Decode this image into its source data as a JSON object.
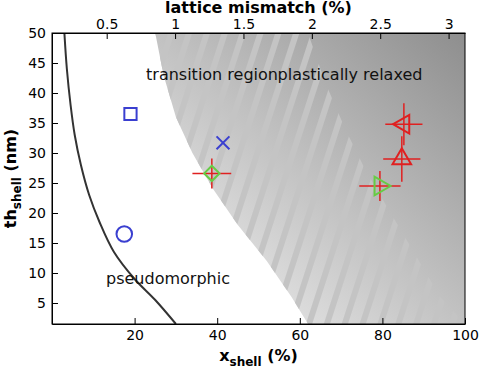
{
  "chart_data": {
    "type": "scatter",
    "xlabel": {
      "text": "x",
      "subscript": "shell",
      "unit": " (%)"
    },
    "ylabel": {
      "text": "th",
      "subscript": "shell",
      "unit": " (nm)"
    },
    "x2label": "lattice mismatch (%)",
    "xlim": [
      0,
      100
    ],
    "xticks": [
      20,
      40,
      60,
      80,
      100
    ],
    "ylim": [
      1.5,
      50
    ],
    "yticks": [
      5,
      10,
      15,
      20,
      25,
      30,
      35,
      40,
      45,
      50
    ],
    "x2lim": [
      0.1,
      3.12
    ],
    "x2ticks": [
      0.5,
      1,
      1.5,
      2,
      2.5,
      3
    ],
    "annotations": [
      "pseudomorphic",
      "transition region",
      "plastically relaxed"
    ],
    "boundary": {
      "x": [
        3,
        3.6,
        4.5,
        5.5,
        7,
        9,
        11.5,
        15,
        20,
        25,
        30
      ],
      "y": [
        50,
        44,
        38,
        33,
        28,
        23,
        18.5,
        13.5,
        9,
        5.5,
        1.5
      ],
      "color": "#333333"
    },
    "transition_region": {
      "left": {
        "x": [
          25,
          27,
          30,
          34,
          39,
          45,
          52,
          58,
          62
        ],
        "y": [
          50,
          43,
          36,
          30,
          24,
          18,
          12,
          6,
          1.5
        ]
      },
      "right": {
        "x": [
          62,
          66,
          71,
          76,
          82,
          88,
          94,
          100
        ],
        "y": [
          50,
          42,
          34,
          27,
          20,
          13,
          6,
          1.5
        ]
      }
    },
    "points": [
      {
        "x": 17.5,
        "y": 16.5,
        "marker": "circle",
        "color": "#3a3fd0"
      },
      {
        "x": 19,
        "y": 36.5,
        "marker": "square",
        "color": "#3a3fd0"
      },
      {
        "x": 41.4,
        "y": 31.7,
        "marker": "x",
        "color": "#3a3fd0"
      },
      {
        "x": 38.7,
        "y": 26.6,
        "xerr": 4.7,
        "yerr": 2.5,
        "marker": "diamond",
        "color": "#66cc44",
        "error_color": "#e02020"
      },
      {
        "x": 79.4,
        "y": 24.5,
        "xerr": 5,
        "yerr": 2.5,
        "marker": "triangle-right",
        "color": "#66cc44",
        "error_color": "#e02020"
      },
      {
        "x": 84.7,
        "y": 29,
        "xerr": 4.5,
        "yerr": 3.8,
        "marker": "triangle-up",
        "color": "#e02020",
        "error_color": "#e02020"
      },
      {
        "x": 85.2,
        "y": 34.8,
        "xerr": 4.5,
        "yerr": 3.5,
        "marker": "triangle-left",
        "color": "#e02020",
        "error_color": "#e02020"
      }
    ]
  }
}
